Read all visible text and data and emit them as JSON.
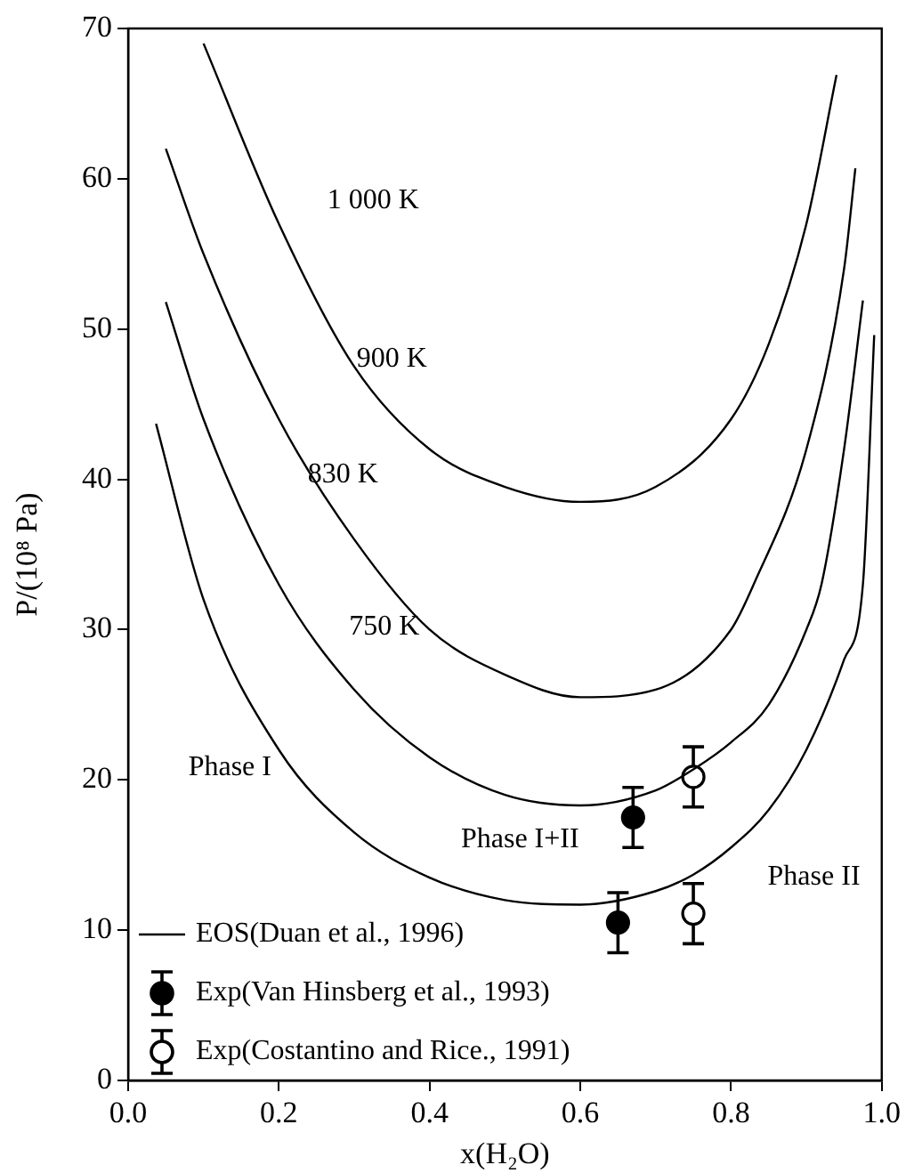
{
  "chart_data": {
    "type": "line",
    "xlabel": "x(H₂O)",
    "ylabel": "P/(10⁸ Pa)",
    "xlim": [
      0,
      1
    ],
    "ylim": [
      0,
      70
    ],
    "xticks": [
      {
        "value": 0,
        "label": "0.0"
      },
      {
        "value": 0.2,
        "label": "0.2"
      },
      {
        "value": 0.4,
        "label": "0.4"
      },
      {
        "value": 0.6,
        "label": "0.6"
      },
      {
        "value": 0.8,
        "label": "0.8"
      },
      {
        "value": 1,
        "label": "1.0"
      }
    ],
    "yticks": [
      0,
      10,
      20,
      30,
      40,
      50,
      60,
      70
    ],
    "grid": false,
    "legend": "bottom left",
    "line_style": "solid",
    "series": [
      {
        "name": "EOS(Duan et al., 1996)",
        "color": "#000000",
        "x": [
          0.037,
          0.1,
          0.2,
          0.3,
          0.4,
          0.5,
          0.6,
          0.7,
          0.75,
          0.8,
          0.85,
          0.9,
          0.95,
          0.975,
          0.99
        ],
        "values": [
          43.7,
          32,
          22,
          16.5,
          13.5,
          12,
          11.7,
          12.6,
          13.7,
          15.5,
          18,
          22,
          28,
          33,
          49.6
        ]
      },
      {
        "color": "#000000",
        "x": [
          0.05,
          0.1,
          0.2,
          0.3,
          0.4,
          0.5,
          0.6,
          0.7,
          0.75,
          0.8,
          0.85,
          0.9,
          0.92,
          0.95,
          0.975
        ],
        "values": [
          51.8,
          44,
          33,
          26,
          21.5,
          19,
          18.3,
          19.3,
          20.7,
          22.5,
          25,
          30,
          33,
          42,
          51.9
        ]
      },
      {
        "color": "#000000",
        "x": [
          0.05,
          0.1,
          0.2,
          0.3,
          0.4,
          0.5,
          0.6,
          0.7,
          0.8,
          0.83,
          0.9,
          0.95,
          0.965
        ],
        "values": [
          62,
          55,
          44,
          36,
          30,
          27,
          25.5,
          26,
          30,
          33,
          42,
          54,
          60.7
        ]
      },
      {
        "color": "#000000",
        "x": [
          0.1,
          0.2,
          0.3,
          0.4,
          0.5,
          0.6,
          0.7,
          0.8,
          0.85,
          0.9,
          0.94
        ],
        "values": [
          69,
          57,
          47.5,
          42,
          39.5,
          38.5,
          39.5,
          44,
          49,
          57,
          66.9
        ]
      },
      {
        "name": "Exp(Van Hinsberg et al., 1993)",
        "type": "scatter",
        "marker": "circle",
        "color": "#000000",
        "x": [
          0.65,
          0.67
        ],
        "values": [
          10.5,
          17.5
        ],
        "errors": [
          2,
          2
        ]
      },
      {
        "name": "Exp(Costantino and Rice., 1991)",
        "type": "scatter",
        "marker": "circle",
        "color": "#ffffff",
        "x": [
          0.75,
          0.75
        ],
        "values": [
          11.1,
          20.2
        ],
        "errors": [
          2,
          2
        ]
      }
    ],
    "annotations": [
      "1 000 K",
      "900 K",
      "830 K",
      "750 K",
      "Phase I",
      "Phase I+II",
      "Phase II"
    ]
  }
}
